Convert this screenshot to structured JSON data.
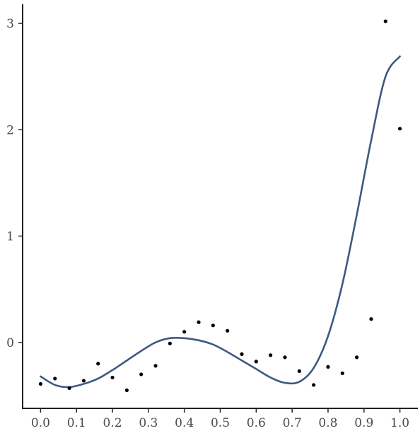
{
  "chart_data": {
    "type": "scatter",
    "title": "",
    "xlabel": "",
    "ylabel": "",
    "xlim": [
      -0.05,
      1.05
    ],
    "ylim": [
      -0.62,
      3.18
    ],
    "x_ticks": [
      0.0,
      0.1,
      0.2,
      0.3,
      0.4,
      0.5,
      0.6,
      0.7,
      0.8,
      0.9,
      1.0
    ],
    "x_tick_labels": [
      "0.0",
      "0.1",
      "0.2",
      "0.3",
      "0.4",
      "0.5",
      "0.6",
      "0.7",
      "0.8",
      "0.9",
      "1.0"
    ],
    "y_ticks": [
      0,
      1,
      2,
      3
    ],
    "y_tick_labels": [
      "0",
      "1",
      "2",
      "3"
    ],
    "grid": false,
    "points": {
      "x": [
        0.0,
        0.04,
        0.08,
        0.12,
        0.16,
        0.2,
        0.24,
        0.28,
        0.32,
        0.36,
        0.4,
        0.44,
        0.48,
        0.52,
        0.56,
        0.6,
        0.64,
        0.68,
        0.72,
        0.76,
        0.8,
        0.84,
        0.88,
        0.92,
        0.96,
        1.0
      ],
      "y": [
        -0.39,
        -0.34,
        -0.43,
        -0.36,
        -0.2,
        -0.33,
        -0.45,
        -0.3,
        -0.22,
        -0.01,
        0.1,
        0.19,
        0.16,
        0.11,
        -0.11,
        -0.18,
        -0.12,
        -0.14,
        -0.27,
        -0.4,
        -0.23,
        -0.29,
        -0.14,
        0.22,
        3.02,
        2.01
      ],
      "color": "#000000"
    },
    "fit_curve": {
      "x": [
        0.0,
        0.04,
        0.08,
        0.12,
        0.16,
        0.2,
        0.24,
        0.28,
        0.32,
        0.36,
        0.4,
        0.44,
        0.48,
        0.52,
        0.56,
        0.6,
        0.64,
        0.68,
        0.72,
        0.76,
        0.8,
        0.84,
        0.88,
        0.92,
        0.96,
        1.0
      ],
      "y": [
        -0.32,
        -0.4,
        -0.42,
        -0.39,
        -0.34,
        -0.26,
        -0.17,
        -0.08,
        0.0,
        0.04,
        0.04,
        0.02,
        -0.02,
        -0.09,
        -0.17,
        -0.25,
        -0.33,
        -0.38,
        -0.37,
        -0.24,
        0.06,
        0.55,
        1.2,
        1.9,
        2.5,
        2.69
      ],
      "color": "#3d5a80"
    }
  }
}
